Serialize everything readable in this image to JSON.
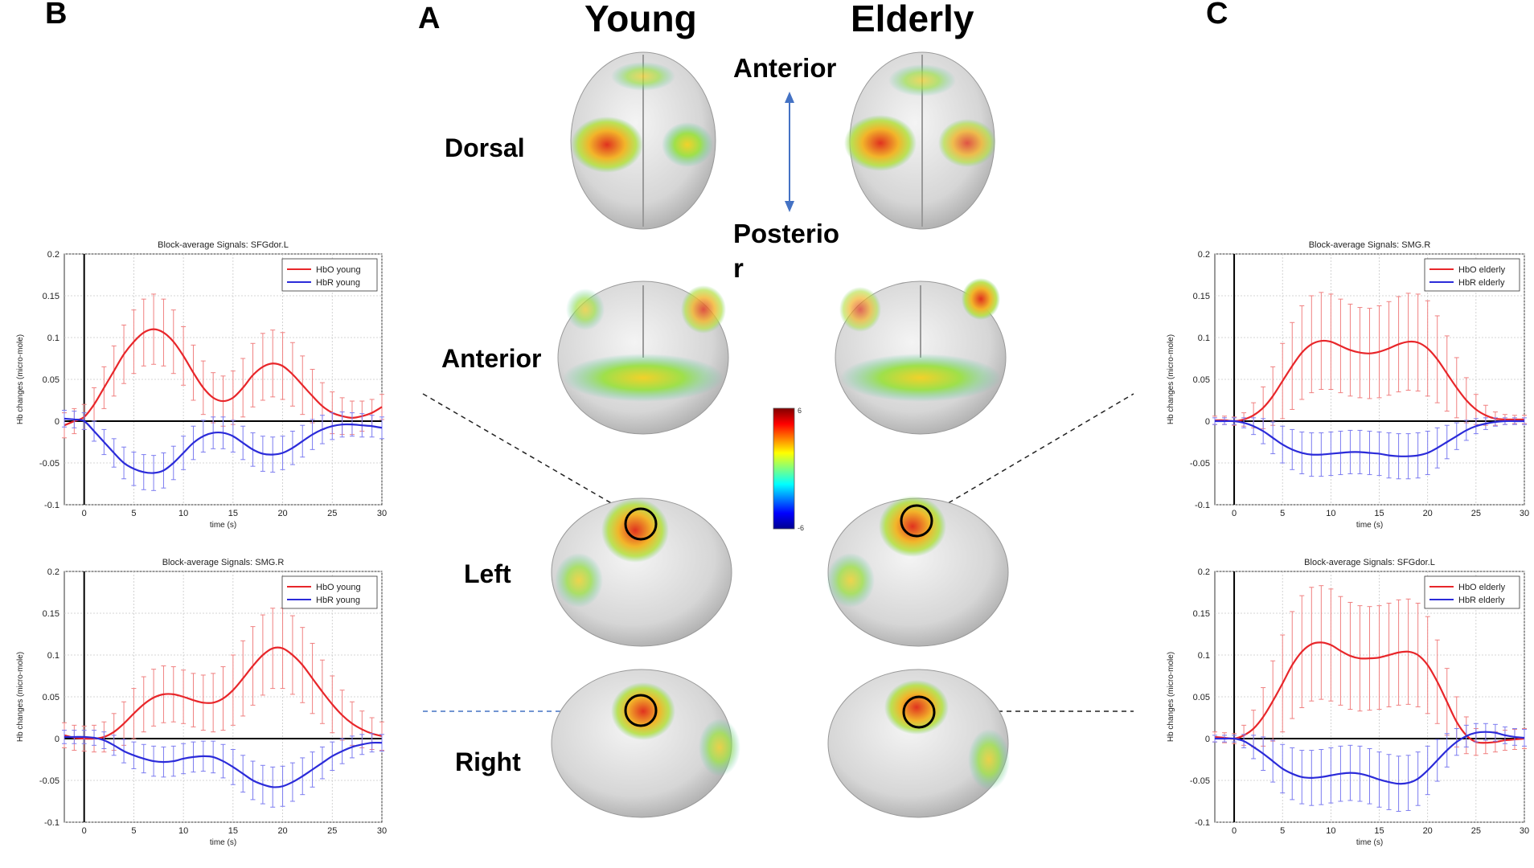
{
  "figure": {
    "panel_labels": {
      "a": "A",
      "b": "B",
      "c": "C"
    },
    "columns": {
      "young": "Young",
      "elderly": "Elderly"
    },
    "views": {
      "dorsal": "Dorsal",
      "anterior": "Anterior",
      "left": "Left",
      "right": "Right"
    },
    "orientation": {
      "top": "Anterior",
      "bottom_line1": "Posterio",
      "bottom_line2": "r"
    },
    "colorbar": {
      "max_label": "6",
      "min_label": "-6"
    },
    "colors": {
      "hbo": "#e8262a",
      "hbr": "#2b2bd9",
      "errorbar_hbo": "#f08080",
      "errorbar_hbr": "#7c7cf0"
    }
  },
  "chart_data": [
    {
      "id": "B1",
      "type": "line",
      "title": "Block-average Signals: SFGdor.L",
      "xlabel": "time (s)",
      "ylabel": "Hb changes (micro-mole)",
      "xlim": [
        -2,
        30
      ],
      "ylim": [
        -0.1,
        0.2
      ],
      "xticks": [
        0,
        5,
        10,
        15,
        20,
        25,
        30
      ],
      "xtick_labels": [
        "0",
        "5",
        "10",
        "15",
        "20",
        "25",
        "30"
      ],
      "yticks": [
        -0.1,
        -0.05,
        0,
        0.05,
        0.1,
        0.15,
        0.2
      ],
      "ytick_labels": [
        "-0.1",
        "-0.05",
        "0",
        "0.05",
        "0.1",
        "0.15",
        "0.2"
      ],
      "grid": true,
      "legend": "top-right",
      "x": [
        -2,
        -1,
        0,
        1,
        2,
        3,
        4,
        5,
        6,
        7,
        8,
        9,
        10,
        11,
        12,
        13,
        14,
        15,
        16,
        17,
        18,
        19,
        20,
        21,
        22,
        23,
        24,
        25,
        26,
        27,
        28,
        29,
        30
      ],
      "series": [
        {
          "name": "HbO young",
          "values": [
            -0.005,
            0,
            0.005,
            0.02,
            0.04,
            0.06,
            0.08,
            0.095,
            0.106,
            0.11,
            0.106,
            0.095,
            0.078,
            0.058,
            0.04,
            0.028,
            0.024,
            0.028,
            0.04,
            0.055,
            0.065,
            0.069,
            0.066,
            0.056,
            0.043,
            0.03,
            0.018,
            0.01,
            0.006,
            0.004,
            0.006,
            0.01,
            0.017
          ],
          "errors": [
            0.015,
            0.015,
            0.015,
            0.02,
            0.025,
            0.03,
            0.035,
            0.038,
            0.04,
            0.042,
            0.04,
            0.038,
            0.035,
            0.033,
            0.032,
            0.03,
            0.03,
            0.032,
            0.035,
            0.038,
            0.04,
            0.04,
            0.04,
            0.038,
            0.035,
            0.032,
            0.028,
            0.025,
            0.022,
            0.02,
            0.018,
            0.016,
            0.015
          ]
        },
        {
          "name": "HbR young",
          "values": [
            0.003,
            0.002,
            0,
            -0.012,
            -0.025,
            -0.038,
            -0.05,
            -0.057,
            -0.061,
            -0.062,
            -0.059,
            -0.05,
            -0.038,
            -0.026,
            -0.018,
            -0.014,
            -0.014,
            -0.018,
            -0.026,
            -0.034,
            -0.039,
            -0.04,
            -0.038,
            -0.032,
            -0.024,
            -0.016,
            -0.01,
            -0.006,
            -0.004,
            -0.004,
            -0.005,
            -0.006,
            -0.008
          ],
          "errors": [
            0.01,
            0.01,
            0.01,
            0.012,
            0.015,
            0.017,
            0.019,
            0.02,
            0.021,
            0.021,
            0.021,
            0.02,
            0.02,
            0.02,
            0.019,
            0.019,
            0.019,
            0.019,
            0.02,
            0.02,
            0.021,
            0.021,
            0.02,
            0.02,
            0.019,
            0.018,
            0.017,
            0.016,
            0.015,
            0.014,
            0.014,
            0.013,
            0.013
          ]
        }
      ]
    },
    {
      "id": "B2",
      "type": "line",
      "title": "Block-average Signals: SMG.R",
      "xlabel": "time (s)",
      "ylabel": "Hb changes (micro-mole)",
      "xlim": [
        -2,
        30
      ],
      "ylim": [
        -0.1,
        0.2
      ],
      "xticks": [
        0,
        5,
        10,
        15,
        20,
        25,
        30
      ],
      "xtick_labels": [
        "0",
        "5",
        "10",
        "15",
        "20",
        "25",
        "30"
      ],
      "yticks": [
        -0.1,
        -0.05,
        0,
        0.05,
        0.1,
        0.15,
        0.2
      ],
      "ytick_labels": [
        "-0.1",
        "-0.05",
        "0",
        "0.05",
        "0.1",
        "0.15",
        "0.2"
      ],
      "grid": true,
      "legend": "top-right",
      "x": [
        -2,
        -1,
        0,
        1,
        2,
        3,
        4,
        5,
        6,
        7,
        8,
        9,
        10,
        11,
        12,
        13,
        14,
        15,
        16,
        17,
        18,
        19,
        20,
        21,
        22,
        23,
        24,
        25,
        26,
        27,
        28,
        29,
        30
      ],
      "series": [
        {
          "name": "HbO young",
          "values": [
            0.004,
            0.001,
            0,
            0,
            0.002,
            0.008,
            0.018,
            0.03,
            0.041,
            0.049,
            0.053,
            0.053,
            0.05,
            0.046,
            0.043,
            0.043,
            0.048,
            0.058,
            0.072,
            0.087,
            0.1,
            0.108,
            0.108,
            0.1,
            0.088,
            0.072,
            0.056,
            0.041,
            0.028,
            0.018,
            0.011,
            0.006,
            0.003
          ],
          "errors": [
            0.015,
            0.015,
            0.015,
            0.016,
            0.018,
            0.022,
            0.026,
            0.03,
            0.033,
            0.034,
            0.034,
            0.033,
            0.032,
            0.032,
            0.033,
            0.035,
            0.038,
            0.042,
            0.045,
            0.047,
            0.048,
            0.048,
            0.048,
            0.047,
            0.045,
            0.042,
            0.038,
            0.034,
            0.03,
            0.026,
            0.022,
            0.019,
            0.017
          ]
        },
        {
          "name": "HbR young",
          "values": [
            0.002,
            0.002,
            0.002,
            0.001,
            -0.002,
            -0.008,
            -0.015,
            -0.02,
            -0.024,
            -0.027,
            -0.028,
            -0.027,
            -0.024,
            -0.022,
            -0.021,
            -0.022,
            -0.027,
            -0.034,
            -0.042,
            -0.05,
            -0.055,
            -0.058,
            -0.057,
            -0.052,
            -0.045,
            -0.037,
            -0.029,
            -0.021,
            -0.015,
            -0.01,
            -0.007,
            -0.005,
            -0.005
          ],
          "errors": [
            0.008,
            0.008,
            0.008,
            0.009,
            0.01,
            0.012,
            0.014,
            0.016,
            0.017,
            0.018,
            0.018,
            0.018,
            0.018,
            0.018,
            0.018,
            0.019,
            0.02,
            0.021,
            0.022,
            0.023,
            0.023,
            0.024,
            0.024,
            0.023,
            0.022,
            0.021,
            0.019,
            0.017,
            0.015,
            0.013,
            0.012,
            0.011,
            0.01
          ]
        }
      ]
    },
    {
      "id": "C1",
      "type": "line",
      "title": "Block-average Signals: SMG.R",
      "xlabel": "time (s)",
      "ylabel": "Hb changes (micro-mole)",
      "xlim": [
        -2,
        30
      ],
      "ylim": [
        -0.1,
        0.2
      ],
      "xticks": [
        0,
        5,
        10,
        15,
        20,
        25,
        30
      ],
      "xtick_labels": [
        "0",
        "5",
        "10",
        "15",
        "20",
        "25",
        "30"
      ],
      "yticks": [
        -0.1,
        -0.05,
        0,
        0.05,
        0.1,
        0.15,
        0.2
      ],
      "ytick_labels": [
        "-0.1",
        "-0.05",
        "0",
        "0.05",
        "0.1",
        "0.15",
        "0.2"
      ],
      "grid": true,
      "legend": "top-right",
      "x": [
        -2,
        -1,
        0,
        1,
        2,
        3,
        4,
        5,
        6,
        7,
        8,
        9,
        10,
        11,
        12,
        13,
        14,
        15,
        16,
        17,
        18,
        19,
        20,
        21,
        22,
        23,
        24,
        25,
        26,
        27,
        28,
        29,
        30
      ],
      "series": [
        {
          "name": "HbO elderly",
          "values": [
            0.001,
            0.001,
            0,
            0.002,
            0.007,
            0.016,
            0.03,
            0.048,
            0.066,
            0.082,
            0.092,
            0.096,
            0.095,
            0.09,
            0.085,
            0.082,
            0.081,
            0.083,
            0.087,
            0.092,
            0.095,
            0.094,
            0.087,
            0.074,
            0.057,
            0.04,
            0.025,
            0.014,
            0.007,
            0.003,
            0.002,
            0.002,
            0.002
          ],
          "errors": [
            0.005,
            0.005,
            0.005,
            0.008,
            0.015,
            0.025,
            0.035,
            0.045,
            0.052,
            0.056,
            0.058,
            0.058,
            0.057,
            0.056,
            0.055,
            0.054,
            0.054,
            0.055,
            0.056,
            0.057,
            0.058,
            0.058,
            0.057,
            0.052,
            0.045,
            0.036,
            0.027,
            0.018,
            0.012,
            0.008,
            0.006,
            0.005,
            0.005
          ]
        },
        {
          "name": "HbR elderly",
          "values": [
            0,
            0,
            0,
            -0.002,
            -0.006,
            -0.012,
            -0.02,
            -0.028,
            -0.034,
            -0.038,
            -0.04,
            -0.04,
            -0.039,
            -0.038,
            -0.037,
            -0.037,
            -0.038,
            -0.039,
            -0.041,
            -0.042,
            -0.042,
            -0.041,
            -0.038,
            -0.032,
            -0.025,
            -0.018,
            -0.011,
            -0.006,
            -0.003,
            -0.001,
            0,
            0,
            0
          ],
          "errors": [
            0.004,
            0.004,
            0.004,
            0.006,
            0.01,
            0.015,
            0.019,
            0.022,
            0.024,
            0.025,
            0.026,
            0.026,
            0.026,
            0.026,
            0.026,
            0.026,
            0.026,
            0.026,
            0.027,
            0.027,
            0.027,
            0.027,
            0.026,
            0.024,
            0.02,
            0.016,
            0.012,
            0.009,
            0.007,
            0.005,
            0.004,
            0.004,
            0.004
          ]
        }
      ]
    },
    {
      "id": "C2",
      "type": "line",
      "title": "Block-average Signals: SFGdor.L",
      "xlabel": "time (s)",
      "ylabel": "Hb changes (micro-mole)",
      "xlim": [
        -2,
        30
      ],
      "ylim": [
        -0.1,
        0.2
      ],
      "xticks": [
        0,
        5,
        10,
        15,
        20,
        25,
        30
      ],
      "xtick_labels": [
        "0",
        "5",
        "10",
        "15",
        "20",
        "25",
        "30"
      ],
      "yticks": [
        -0.1,
        -0.05,
        0,
        0.05,
        0.1,
        0.15,
        0.2
      ],
      "ytick_labels": [
        "-0.1",
        "-0.05",
        "0",
        "0.05",
        "0.1",
        "0.15",
        "0.2"
      ],
      "grid": true,
      "legend": "top-right",
      "x": [
        -2,
        -1,
        0,
        1,
        2,
        3,
        4,
        5,
        6,
        7,
        8,
        9,
        10,
        11,
        12,
        13,
        14,
        15,
        16,
        17,
        18,
        19,
        20,
        21,
        22,
        23,
        24,
        25,
        26,
        27,
        28,
        29,
        30
      ],
      "series": [
        {
          "name": "HbO elderly",
          "values": [
            0.002,
            0.001,
            0,
            0.004,
            0.012,
            0.026,
            0.045,
            0.066,
            0.088,
            0.104,
            0.113,
            0.115,
            0.112,
            0.105,
            0.099,
            0.096,
            0.096,
            0.097,
            0.1,
            0.103,
            0.104,
            0.1,
            0.088,
            0.068,
            0.044,
            0.02,
            0.004,
            -0.004,
            -0.005,
            -0.004,
            -0.002,
            -0.001,
            0
          ],
          "errors": [
            0.006,
            0.006,
            0.006,
            0.012,
            0.022,
            0.035,
            0.048,
            0.058,
            0.064,
            0.067,
            0.068,
            0.068,
            0.067,
            0.065,
            0.064,
            0.063,
            0.062,
            0.062,
            0.062,
            0.063,
            0.063,
            0.062,
            0.058,
            0.05,
            0.04,
            0.03,
            0.022,
            0.016,
            0.013,
            0.012,
            0.012,
            0.012,
            0.012
          ]
        },
        {
          "name": "HbR elderly",
          "values": [
            0,
            0,
            0,
            -0.003,
            -0.01,
            -0.018,
            -0.027,
            -0.036,
            -0.042,
            -0.046,
            -0.047,
            -0.046,
            -0.044,
            -0.042,
            -0.041,
            -0.042,
            -0.045,
            -0.049,
            -0.052,
            -0.054,
            -0.053,
            -0.048,
            -0.038,
            -0.026,
            -0.014,
            -0.004,
            0.003,
            0.007,
            0.008,
            0.007,
            0.004,
            0.002,
            0.001
          ],
          "errors": [
            0.004,
            0.004,
            0.004,
            0.008,
            0.014,
            0.02,
            0.025,
            0.029,
            0.031,
            0.032,
            0.033,
            0.033,
            0.033,
            0.033,
            0.033,
            0.033,
            0.033,
            0.033,
            0.033,
            0.033,
            0.033,
            0.032,
            0.029,
            0.025,
            0.02,
            0.016,
            0.013,
            0.011,
            0.01,
            0.01,
            0.01,
            0.01,
            0.01
          ]
        }
      ]
    }
  ]
}
